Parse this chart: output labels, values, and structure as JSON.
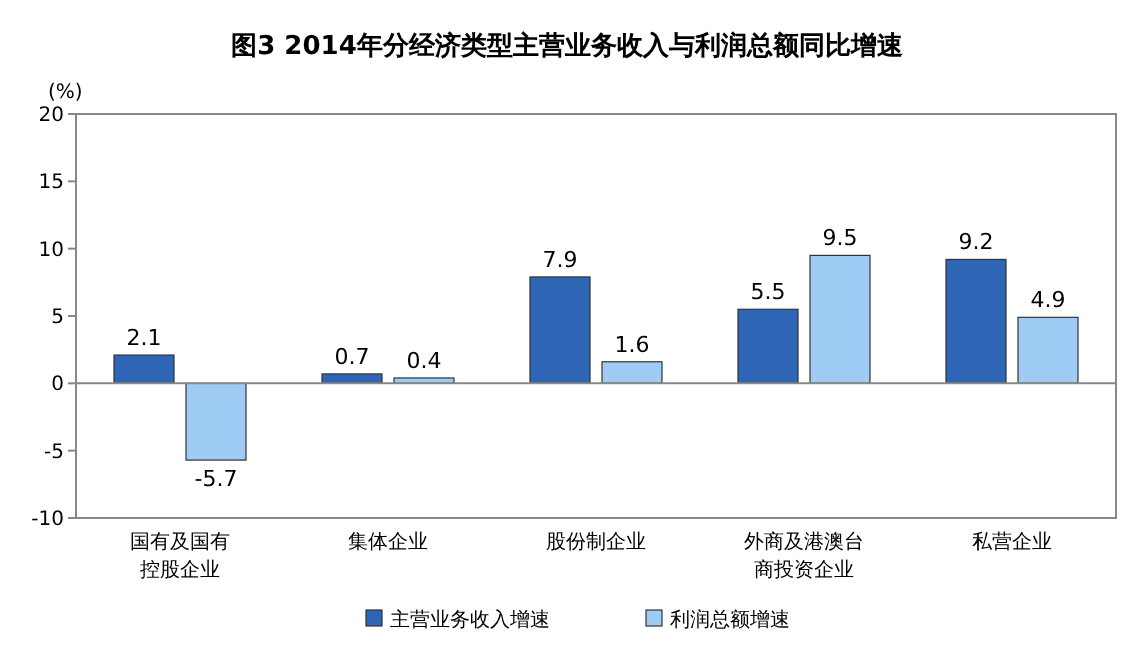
{
  "chart_data": {
    "type": "bar",
    "title": "图3 2014年分经济类型主营业务收入与利润总额同比增速",
    "ylabel": "(%)",
    "categories": [
      "国有及国有控股企业",
      "集体企业",
      "股份制企业",
      "外商及港澳台商投资企业",
      "私营企业"
    ],
    "ref_lines": [
      {
        "axis": "y",
        "value": 0,
        "color": "#888888"
      }
    ],
    "series": [
      {
        "name": "主营业务收入增速",
        "color": "#2e65b5",
        "values": [
          2.1,
          0.7,
          7.9,
          5.5,
          9.2
        ]
      },
      {
        "name": "利润总额增速",
        "color": "#9dcbf3",
        "values": [
          -5.7,
          0.4,
          1.6,
          9.5,
          4.9
        ]
      }
    ],
    "ylim": [
      -10,
      20
    ],
    "yticks": [
      -10,
      -5,
      0,
      5,
      10,
      15,
      20
    ],
    "data_labels": true,
    "legend": "bottom",
    "grid": false
  }
}
